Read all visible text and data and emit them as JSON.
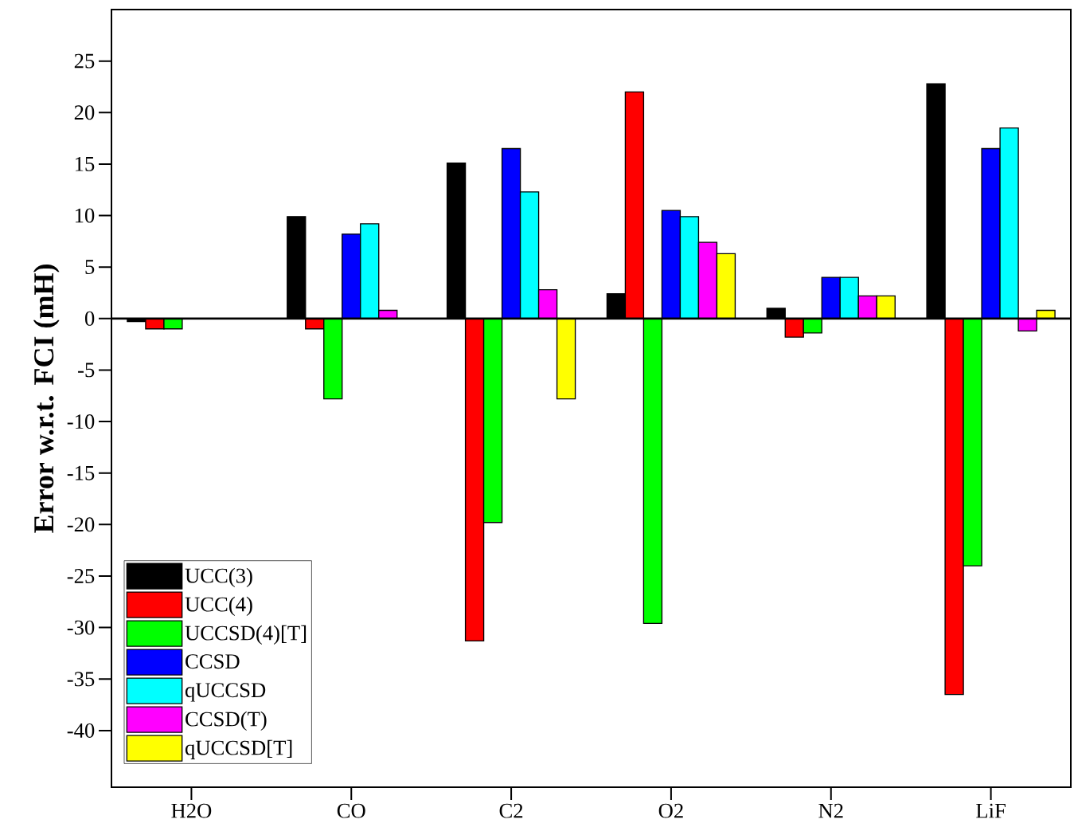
{
  "chart_data": {
    "type": "bar",
    "ylabel": "Error w.r.t. FCI (mH)",
    "categories": [
      "H2O",
      "CO",
      "C2",
      "O2",
      "N2",
      "LiF"
    ],
    "series": [
      {
        "name": "UCC(3)",
        "color": "#000000",
        "values": [
          -0.3,
          9.9,
          15.1,
          2.4,
          1.0,
          22.8
        ]
      },
      {
        "name": "UCC(4)",
        "color": "#ff0000",
        "values": [
          -1.0,
          -1.0,
          -31.3,
          22.0,
          -1.8,
          -36.5
        ]
      },
      {
        "name": "UCCSD(4)[T]",
        "color": "#00ff00",
        "values": [
          -1.0,
          -7.8,
          -19.8,
          -29.6,
          -1.4,
          -24.0
        ]
      },
      {
        "name": "CCSD",
        "color": "#0000ff",
        "values": [
          null,
          8.2,
          16.5,
          10.5,
          4.0,
          16.5
        ]
      },
      {
        "name": "qUCCSD",
        "color": "#00ffff",
        "values": [
          null,
          9.2,
          12.3,
          9.9,
          4.0,
          18.5
        ]
      },
      {
        "name": "CCSD(T)",
        "color": "#ff00ff",
        "values": [
          null,
          0.8,
          2.8,
          7.4,
          2.2,
          -1.2
        ]
      },
      {
        "name": "qUCCSD[T]",
        "color": "#ffff00",
        "values": [
          null,
          null,
          -7.8,
          6.3,
          2.2,
          0.8
        ]
      }
    ],
    "ylim": [
      -45.5,
      30
    ],
    "yticks": [
      -40,
      -35,
      -30,
      -25,
      -20,
      -15,
      -10,
      -5,
      0,
      5,
      10,
      15,
      20,
      25
    ],
    "ref_lines": [
      {
        "axis": "y",
        "value": 0,
        "color": "#000000",
        "line_style": "solid"
      }
    ],
    "legend": "bottom left"
  }
}
